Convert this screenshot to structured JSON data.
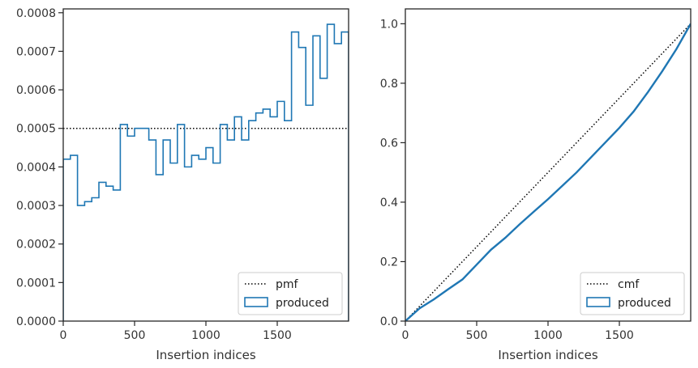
{
  "chart_data": [
    {
      "type": "step-histogram",
      "xlabel": "Insertion indices",
      "ylabel": "",
      "xlim": [
        0,
        2000
      ],
      "ylim": [
        0,
        0.00081
      ],
      "xticks": [
        0,
        500,
        1000,
        1500
      ],
      "xtick_labels": [
        "0",
        "500",
        "1000",
        "1500"
      ],
      "yticks": [
        0,
        0.0001,
        0.0002,
        0.0003,
        0.0004,
        0.0005,
        0.0006,
        0.0007,
        0.0008
      ],
      "ytick_labels": [
        "0.0000",
        "0.0001",
        "0.0002",
        "0.0003",
        "0.0004",
        "0.0005",
        "0.0006",
        "0.0007",
        "0.0008"
      ],
      "bin_edges": [
        0,
        50,
        100,
        150,
        200,
        250,
        300,
        350,
        400,
        450,
        500,
        550,
        600,
        650,
        700,
        750,
        800,
        850,
        900,
        950,
        1000,
        1050,
        1100,
        1150,
        1200,
        1250,
        1300,
        1350,
        1400,
        1450,
        1500,
        1550,
        1600,
        1650,
        1700,
        1750,
        1800,
        1850,
        1900,
        1950,
        2000
      ],
      "series": [
        {
          "name": "pmf",
          "style": "dotted",
          "color": "#000000",
          "value": 0.0005
        },
        {
          "name": "produced",
          "style": "step",
          "color": "#1f77b4",
          "values": [
            0.00042,
            0.00043,
            0.0003,
            0.00031,
            0.00032,
            0.00036,
            0.00035,
            0.00034,
            0.00051,
            0.00048,
            0.0005,
            0.0005,
            0.00047,
            0.00038,
            0.00047,
            0.00041,
            0.00051,
            0.0004,
            0.00043,
            0.00042,
            0.00045,
            0.00041,
            0.00051,
            0.00047,
            0.00053,
            0.00047,
            0.00052,
            0.00054,
            0.00055,
            0.00053,
            0.00057,
            0.00052,
            0.00075,
            0.00071,
            0.00056,
            0.00074,
            0.00063,
            0.00077,
            0.00072,
            0.00075
          ]
        }
      ],
      "legend": {
        "placement": "lower-right",
        "entries": [
          "pmf",
          "produced"
        ]
      }
    },
    {
      "type": "line",
      "xlabel": "Insertion indices",
      "ylabel": "",
      "xlim": [
        0,
        2000
      ],
      "ylim": [
        0,
        1.05
      ],
      "xticks": [
        0,
        500,
        1000,
        1500
      ],
      "xtick_labels": [
        "0",
        "500",
        "1000",
        "1500"
      ],
      "yticks": [
        0,
        0.2,
        0.4,
        0.6,
        0.8,
        1.0
      ],
      "ytick_labels": [
        "0.0",
        "0.2",
        "0.4",
        "0.6",
        "0.8",
        "1.0"
      ],
      "series": [
        {
          "name": "cmf",
          "style": "dotted",
          "color": "#000000",
          "x": [
            0,
            2000
          ],
          "y": [
            0,
            1.0
          ]
        },
        {
          "name": "produced",
          "style": "solid",
          "color": "#1f77b4",
          "x": [
            0,
            100,
            200,
            300,
            400,
            500,
            600,
            700,
            800,
            900,
            1000,
            1100,
            1200,
            1300,
            1400,
            1500,
            1600,
            1700,
            1800,
            1900,
            2000
          ],
          "y": [
            0,
            0.043,
            0.073,
            0.107,
            0.14,
            0.19,
            0.24,
            0.28,
            0.325,
            0.368,
            0.41,
            0.455,
            0.5,
            0.55,
            0.6,
            0.65,
            0.705,
            0.77,
            0.84,
            0.915,
            1.0
          ]
        }
      ],
      "legend": {
        "placement": "lower-right",
        "entries": [
          "cmf",
          "produced"
        ]
      }
    }
  ]
}
